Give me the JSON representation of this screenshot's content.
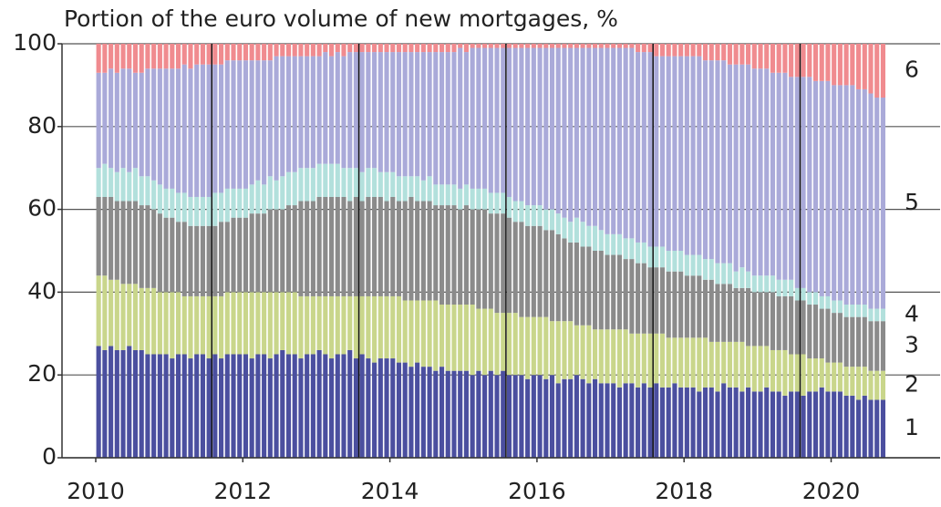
{
  "chart_data": {
    "type": "stacked-bar",
    "title": "Portion of the euro volume of new mortgages, %",
    "categories": [
      "2010",
      null,
      null,
      null,
      null,
      null,
      null,
      null,
      null,
      null,
      null,
      null,
      null,
      null,
      null,
      null,
      null,
      null,
      null,
      null,
      null,
      null,
      null,
      null,
      "2012",
      null,
      null,
      null,
      null,
      null,
      null,
      null,
      null,
      null,
      null,
      null,
      null,
      null,
      null,
      null,
      null,
      null,
      null,
      null,
      null,
      null,
      null,
      null,
      "2014",
      null,
      null,
      null,
      null,
      null,
      null,
      null,
      null,
      null,
      null,
      null,
      null,
      null,
      null,
      null,
      null,
      null,
      null,
      null,
      null,
      null,
      null,
      null,
      "2016",
      null,
      null,
      null,
      null,
      null,
      null,
      null,
      null,
      null,
      null,
      null,
      null,
      null,
      null,
      null,
      null,
      null,
      null,
      null,
      null,
      null,
      null,
      null,
      "2018",
      null,
      null,
      null,
      null,
      null,
      null,
      null,
      null,
      null,
      null,
      null,
      null,
      null,
      null,
      null,
      null,
      null,
      null,
      null,
      null,
      null,
      null,
      null,
      "2020",
      null,
      null,
      null,
      null,
      null,
      null,
      null,
      null
    ],
    "ylim": [
      0,
      100
    ],
    "yticks": [
      0,
      20,
      40,
      60,
      80,
      100
    ],
    "grid": true,
    "series": [
      {
        "name": "1",
        "color": "#4b4f9f",
        "values": [
          27,
          26,
          27,
          26,
          26,
          27,
          26,
          26,
          25,
          25,
          25,
          25,
          24,
          25,
          25,
          24,
          25,
          25,
          24,
          25,
          24,
          25,
          25,
          25,
          25,
          24,
          25,
          25,
          24,
          25,
          26,
          25,
          25,
          24,
          25,
          25,
          26,
          25,
          24,
          25,
          25,
          26,
          24,
          25,
          24,
          23,
          24,
          24,
          24,
          23,
          23,
          22,
          23,
          22,
          22,
          21,
          22,
          21,
          21,
          21,
          21,
          20,
          21,
          20,
          21,
          20,
          21,
          20,
          20,
          20,
          19,
          20,
          20,
          19,
          20,
          18,
          19,
          19,
          20,
          19,
          18,
          19,
          18,
          18,
          18,
          17,
          18,
          18,
          17,
          18,
          17,
          18,
          17,
          17,
          18,
          17,
          17,
          17,
          16,
          17,
          17,
          16,
          18,
          17,
          17,
          16,
          17,
          16,
          16,
          17,
          16,
          16,
          15,
          16,
          16,
          15,
          16,
          16,
          17,
          16,
          16,
          16,
          15,
          15,
          14,
          15,
          14,
          14,
          14
        ]
      },
      {
        "name": "2",
        "color": "#c9d68b",
        "values": [
          17,
          18,
          16,
          17,
          16,
          15,
          16,
          15,
          16,
          16,
          15,
          15,
          16,
          15,
          14,
          15,
          14,
          14,
          15,
          14,
          15,
          15,
          15,
          15,
          15,
          16,
          15,
          15,
          16,
          15,
          14,
          15,
          15,
          15,
          14,
          14,
          13,
          14,
          15,
          14,
          14,
          13,
          15,
          14,
          15,
          16,
          15,
          15,
          15,
          16,
          15,
          16,
          15,
          16,
          16,
          17,
          15,
          16,
          16,
          16,
          16,
          17,
          15,
          16,
          15,
          15,
          14,
          15,
          15,
          14,
          15,
          14,
          14,
          15,
          13,
          15,
          14,
          14,
          12,
          13,
          14,
          12,
          13,
          13,
          13,
          14,
          13,
          12,
          13,
          12,
          13,
          12,
          13,
          12,
          11,
          12,
          12,
          12,
          13,
          12,
          11,
          12,
          10,
          11,
          11,
          12,
          10,
          11,
          11,
          10,
          10,
          10,
          11,
          9,
          9,
          10,
          8,
          8,
          7,
          7,
          7,
          7,
          7,
          7,
          8,
          7,
          7,
          7,
          7
        ]
      },
      {
        "name": "3",
        "color": "#8b8b8b",
        "values": [
          19,
          19,
          20,
          19,
          20,
          20,
          20,
          20,
          20,
          19,
          19,
          18,
          18,
          17,
          18,
          17,
          17,
          17,
          17,
          17,
          18,
          17,
          18,
          18,
          18,
          19,
          19,
          19,
          20,
          20,
          20,
          21,
          21,
          23,
          23,
          23,
          24,
          24,
          24,
          24,
          24,
          23,
          24,
          23,
          24,
          24,
          24,
          23,
          24,
          23,
          24,
          25,
          24,
          24,
          24,
          23,
          24,
          24,
          24,
          23,
          24,
          23,
          24,
          24,
          23,
          24,
          24,
          23,
          22,
          23,
          22,
          22,
          22,
          21,
          22,
          21,
          20,
          19,
          20,
          19,
          19,
          19,
          19,
          18,
          18,
          18,
          17,
          18,
          17,
          17,
          16,
          16,
          16,
          16,
          16,
          16,
          15,
          15,
          15,
          14,
          15,
          14,
          14,
          14,
          13,
          13,
          14,
          13,
          13,
          13,
          14,
          13,
          13,
          14,
          13,
          13,
          13,
          13,
          12,
          13,
          12,
          12,
          12,
          12,
          12,
          12,
          12,
          12,
          12
        ]
      },
      {
        "name": "4",
        "color": "#b2e0dc",
        "values": [
          7,
          8,
          7,
          7,
          8,
          7,
          8,
          7,
          7,
          7,
          7,
          7,
          7,
          7,
          7,
          7,
          7,
          7,
          7,
          8,
          7,
          8,
          7,
          7,
          7,
          7,
          8,
          7,
          8,
          7,
          8,
          8,
          8,
          8,
          8,
          8,
          8,
          8,
          8,
          8,
          7,
          8,
          7,
          7,
          7,
          7,
          6,
          7,
          6,
          6,
          6,
          5,
          6,
          5,
          6,
          5,
          5,
          5,
          5,
          5,
          5,
          5,
          5,
          5,
          5,
          5,
          5,
          5,
          5,
          5,
          5,
          5,
          5,
          5,
          5,
          5,
          5,
          5,
          6,
          6,
          5,
          6,
          5,
          5,
          5,
          5,
          5,
          5,
          5,
          5,
          5,
          5,
          5,
          5,
          5,
          5,
          5,
          5,
          5,
          5,
          5,
          5,
          5,
          5,
          4,
          5,
          4,
          4,
          4,
          4,
          4,
          4,
          4,
          4,
          3,
          3,
          3,
          3,
          3,
          3,
          3,
          3,
          3,
          3,
          3,
          3,
          3,
          3,
          3
        ]
      },
      {
        "name": "5",
        "color": "#aaaad9",
        "values": [
          23,
          22,
          24,
          24,
          24,
          25,
          23,
          25,
          26,
          27,
          28,
          29,
          29,
          30,
          31,
          31,
          32,
          32,
          32,
          31,
          31,
          31,
          31,
          31,
          31,
          30,
          29,
          30,
          28,
          30,
          29,
          28,
          28,
          27,
          27,
          27,
          26,
          27,
          26,
          27,
          27,
          28,
          28,
          29,
          28,
          28,
          29,
          29,
          29,
          30,
          30,
          30,
          30,
          31,
          30,
          32,
          32,
          32,
          32,
          34,
          32,
          34,
          34,
          34,
          35,
          35,
          35,
          36,
          37,
          37,
          38,
          38,
          38,
          39,
          39,
          40,
          41,
          42,
          41,
          42,
          43,
          43,
          44,
          45,
          45,
          45,
          46,
          46,
          46,
          46,
          47,
          46,
          46,
          47,
          47,
          47,
          48,
          48,
          48,
          48,
          48,
          49,
          49,
          48,
          50,
          49,
          50,
          50,
          50,
          50,
          49,
          50,
          50,
          49,
          51,
          51,
          52,
          51,
          52,
          52,
          52,
          52,
          53,
          53,
          52,
          52,
          52,
          51,
          51
        ]
      },
      {
        "name": "6",
        "color": "#f08b8f",
        "values": [
          7,
          7,
          6,
          7,
          6,
          6,
          7,
          7,
          6,
          6,
          6,
          6,
          6,
          6,
          5,
          6,
          5,
          5,
          5,
          5,
          5,
          4,
          4,
          4,
          4,
          4,
          4,
          4,
          4,
          3,
          3,
          3,
          3,
          3,
          3,
          3,
          3,
          2,
          3,
          2,
          3,
          2,
          2,
          2,
          2,
          2,
          2,
          2,
          2,
          2,
          2,
          2,
          2,
          2,
          2,
          2,
          2,
          2,
          2,
          1,
          2,
          1,
          1,
          1,
          1,
          1,
          1,
          1,
          1,
          1,
          1,
          1,
          1,
          1,
          1,
          1,
          1,
          1,
          1,
          1,
          1,
          1,
          1,
          1,
          1,
          1,
          1,
          1,
          2,
          2,
          2,
          3,
          3,
          3,
          3,
          3,
          3,
          3,
          3,
          4,
          4,
          4,
          4,
          5,
          5,
          5,
          5,
          6,
          6,
          6,
          7,
          7,
          7,
          8,
          8,
          8,
          8,
          9,
          9,
          9,
          10,
          10,
          10,
          10,
          11,
          11,
          12,
          13,
          13
        ]
      }
    ]
  }
}
